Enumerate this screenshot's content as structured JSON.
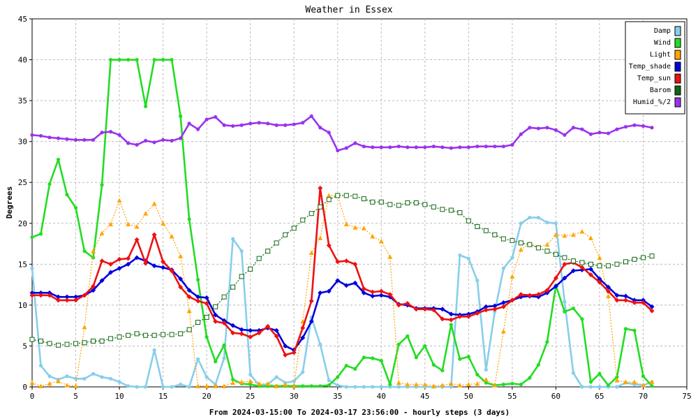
{
  "chart_data": {
    "type": "line",
    "title": "Weather in Essex",
    "ylabel": "Degrees",
    "xlabel": "From 2024-03-15:00 To 2024-03-17 23:56:00 - hourly steps (3 days)",
    "xlim": [
      0,
      75
    ],
    "ylim": [
      0,
      45
    ],
    "xticks": [
      0,
      5,
      10,
      15,
      20,
      25,
      30,
      35,
      40,
      45,
      50,
      55,
      60,
      65,
      70,
      75
    ],
    "yticks": [
      0,
      5,
      10,
      15,
      20,
      25,
      30,
      35,
      40,
      45
    ],
    "grid": true,
    "legend_position": "top-right",
    "series": [
      {
        "name": "Damp",
        "color": "#87ceeb",
        "marker": "circle",
        "dashed": false,
        "values": [
          14.5,
          2.6,
          1.3,
          0.9,
          1.3,
          1.0,
          1.0,
          1.6,
          1.2,
          1.0,
          0.6,
          0.1,
          0.0,
          0.0,
          4.5,
          0.0,
          0.0,
          0.3,
          0.0,
          3.4,
          1.2,
          0.3,
          3.5,
          18.1,
          16.6,
          1.5,
          0.2,
          0.3,
          1.2,
          0.5,
          0.7,
          1.8,
          8.5,
          5.2,
          0.8,
          0.2,
          0.0,
          0.0,
          0.0,
          0.0,
          0.0,
          0.0,
          0.0,
          0.0,
          0.0,
          0.0,
          0.0,
          0.0,
          0.0,
          16.1,
          15.7,
          13.0,
          2.1,
          9.2,
          14.5,
          15.8,
          20.0,
          20.7,
          20.7,
          20.1,
          20.0,
          10.4,
          1.7,
          0.0,
          0.0,
          0.0,
          0.0,
          0.0,
          0.5,
          0.3,
          0.2,
          0.6
        ]
      },
      {
        "name": "Wind",
        "color": "#22dd22",
        "marker": "circle",
        "dashed": false,
        "values": [
          18.3,
          18.7,
          24.8,
          27.8,
          23.5,
          21.9,
          16.6,
          15.8,
          24.7,
          40.0,
          40.0,
          40.0,
          40.0,
          34.3,
          40.0,
          40.0,
          40.0,
          33.1,
          20.5,
          13.1,
          6.1,
          3.1,
          5.1,
          0.9,
          0.4,
          0.3,
          0.1,
          0.1,
          0.1,
          0.1,
          0.1,
          0.1,
          0.1,
          0.1,
          0.2,
          1.2,
          2.6,
          2.2,
          3.6,
          3.5,
          3.2,
          0.3,
          5.2,
          6.2,
          3.6,
          5.0,
          2.7,
          2.0,
          7.6,
          3.4,
          3.7,
          1.5,
          0.5,
          0.2,
          0.3,
          0.4,
          0.3,
          1.1,
          2.7,
          5.5,
          12.4,
          9.2,
          9.6,
          8.3,
          0.6,
          1.6,
          0.2,
          1.2,
          7.1,
          6.9,
          1.3,
          0.1
        ]
      },
      {
        "name": "Light",
        "color": "#ffa500",
        "marker": "triangle",
        "dashed": true,
        "values": [
          0.5,
          0.1,
          0.4,
          0.7,
          0.2,
          0.1,
          7.3,
          16.6,
          18.8,
          19.9,
          22.8,
          19.9,
          19.6,
          21.2,
          22.4,
          20.0,
          18.4,
          16.0,
          9.3,
          0.1,
          0.1,
          0.1,
          0.1,
          0.5,
          0.6,
          0.7,
          0.4,
          0.4,
          0.1,
          0.3,
          0.1,
          8.0,
          16.4,
          18.2,
          23.4,
          23.4,
          19.9,
          19.5,
          19.4,
          18.4,
          17.8,
          15.9,
          0.5,
          0.3,
          0.3,
          0.3,
          0.1,
          0.2,
          0.4,
          0.2,
          0.3,
          0.4,
          0.9,
          0.2,
          6.8,
          13.5,
          16.8,
          17.5,
          17.1,
          17.4,
          18.6,
          18.5,
          18.6,
          19.0,
          18.2,
          15.8,
          11.1,
          0.8,
          0.6,
          0.6,
          0.2,
          0.6
        ]
      },
      {
        "name": "Temp_shade",
        "color": "#0000dd",
        "marker": "diamond",
        "dashed": false,
        "values": [
          11.5,
          11.5,
          11.5,
          11.0,
          11.0,
          11.0,
          11.2,
          11.8,
          13.0,
          14.0,
          14.5,
          15.0,
          15.8,
          15.4,
          14.8,
          14.6,
          14.3,
          13.2,
          11.8,
          11.0,
          10.9,
          8.8,
          8.1,
          7.5,
          7.0,
          6.9,
          6.9,
          7.2,
          6.9,
          5.0,
          4.5,
          6.0,
          8.0,
          11.5,
          11.7,
          13.0,
          12.4,
          12.7,
          11.5,
          11.1,
          11.2,
          11.0,
          10.1,
          10.0,
          9.6,
          9.6,
          9.6,
          9.5,
          8.9,
          8.8,
          8.9,
          9.2,
          9.8,
          9.9,
          10.3,
          10.6,
          11.0,
          11.1,
          11.0,
          11.5,
          12.3,
          13.3,
          14.2,
          14.3,
          14.4,
          13.2,
          12.2,
          11.2,
          11.1,
          10.6,
          10.6,
          9.8
        ]
      },
      {
        "name": "Temp_sun",
        "color": "#ee1111",
        "marker": "diamond",
        "dashed": false,
        "values": [
          11.2,
          11.2,
          11.2,
          10.6,
          10.6,
          10.6,
          11.2,
          12.3,
          15.4,
          15.0,
          15.6,
          15.7,
          18.0,
          15.1,
          18.6,
          15.3,
          14.2,
          12.2,
          11.0,
          10.5,
          10.2,
          8.0,
          7.8,
          6.6,
          6.5,
          6.1,
          6.6,
          7.4,
          6.2,
          3.9,
          4.2,
          7.2,
          10.5,
          24.3,
          17.3,
          15.3,
          15.4,
          15.0,
          12.0,
          11.6,
          11.7,
          11.3,
          10.0,
          10.2,
          9.5,
          9.5,
          9.4,
          8.3,
          8.2,
          8.6,
          8.6,
          9.0,
          9.4,
          9.5,
          9.8,
          10.6,
          11.3,
          11.2,
          11.3,
          11.8,
          13.3,
          15.0,
          15.2,
          14.6,
          13.7,
          12.8,
          11.7,
          10.6,
          10.6,
          10.3,
          10.3,
          9.3
        ]
      },
      {
        "name": "Barom",
        "color": "#116611",
        "marker": "square",
        "dashed": true,
        "values": [
          5.8,
          5.6,
          5.3,
          5.1,
          5.2,
          5.3,
          5.4,
          5.6,
          5.6,
          5.9,
          6.1,
          6.3,
          6.5,
          6.3,
          6.3,
          6.4,
          6.4,
          6.5,
          7.0,
          7.9,
          8.5,
          9.8,
          11.0,
          12.2,
          13.5,
          14.4,
          15.7,
          16.6,
          17.6,
          18.6,
          19.4,
          20.4,
          21.2,
          22.0,
          22.9,
          23.4,
          23.4,
          23.3,
          23.0,
          22.6,
          22.6,
          22.3,
          22.2,
          22.5,
          22.5,
          22.3,
          22.0,
          21.7,
          21.6,
          21.3,
          20.3,
          19.6,
          19.1,
          18.6,
          18.1,
          17.9,
          17.6,
          17.4,
          17.0,
          16.6,
          16.2,
          15.8,
          15.4,
          15.2,
          15.0,
          14.8,
          14.8,
          15.0,
          15.3,
          15.6,
          15.8,
          16.0
        ]
      },
      {
        "name": "Humid_%/2",
        "color": "#9933ee",
        "marker": "circle",
        "dashed": false,
        "values": [
          30.8,
          30.7,
          30.5,
          30.4,
          30.3,
          30.2,
          30.2,
          30.2,
          31.1,
          31.2,
          30.8,
          29.8,
          29.6,
          30.1,
          29.9,
          30.2,
          30.1,
          30.4,
          32.2,
          31.5,
          32.7,
          33.0,
          32.0,
          31.9,
          32.0,
          32.2,
          32.3,
          32.2,
          32.0,
          32.0,
          32.1,
          32.3,
          33.1,
          31.7,
          31.1,
          28.9,
          29.2,
          29.8,
          29.4,
          29.3,
          29.3,
          29.3,
          29.4,
          29.3,
          29.3,
          29.3,
          29.4,
          29.3,
          29.2,
          29.3,
          29.3,
          29.4,
          29.4,
          29.4,
          29.4,
          29.6,
          30.9,
          31.7,
          31.6,
          31.7,
          31.4,
          30.8,
          31.7,
          31.5,
          30.9,
          31.1,
          31.0,
          31.5,
          31.8,
          32.0,
          31.9,
          31.7
        ]
      }
    ]
  }
}
